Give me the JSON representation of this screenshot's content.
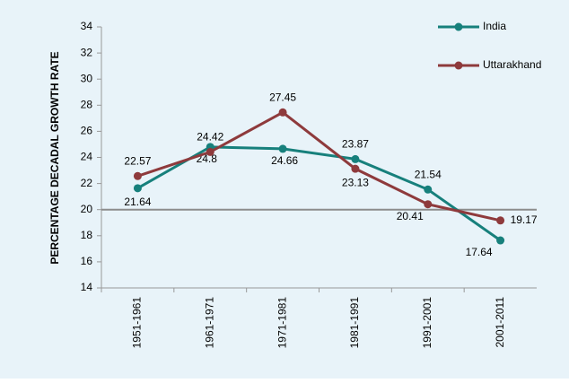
{
  "chart_data": {
    "type": "line",
    "y_axis_label": "PERCENTAGE DECADAL GROWTH RATE",
    "categories": [
      "1951-1961",
      "1961-1971",
      "1971-1981",
      "1981-1991",
      "1991-2001",
      "2001-2011"
    ],
    "series": [
      {
        "name": "India",
        "color": "#17807c",
        "values": [
          21.64,
          24.8,
          24.66,
          23.87,
          21.54,
          17.64
        ]
      },
      {
        "name": "Uttarakhand",
        "color": "#8e3a3c",
        "values": [
          22.57,
          24.42,
          27.45,
          23.13,
          20.41,
          19.17
        ]
      }
    ],
    "ylim": [
      14,
      34
    ],
    "yticks": [
      14,
      16,
      18,
      20,
      22,
      24,
      26,
      28,
      30,
      32,
      34
    ],
    "x_axis_crosses_at": 20,
    "legend": "top-right"
  }
}
